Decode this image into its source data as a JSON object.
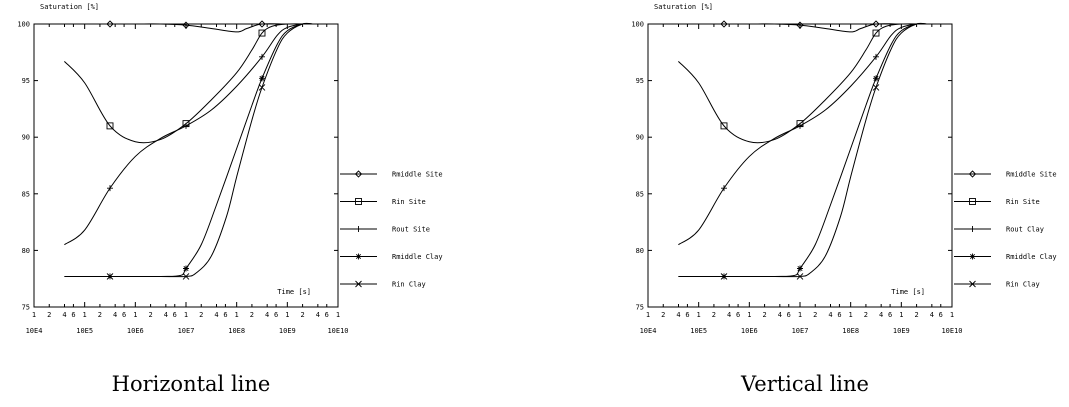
{
  "chart_data": [
    {
      "type": "line",
      "caption": "Horizontal line",
      "ylabel": "Saturation [%]",
      "xlabel": "Time [s]",
      "ylim": [
        75,
        100
      ],
      "yticks": [
        75,
        80,
        85,
        90,
        95,
        100
      ],
      "xlim_log10": [
        4,
        10
      ],
      "xtick_major_labels": [
        "10E4",
        "10E5",
        "10E6",
        "10E7",
        "10E8",
        "10E9",
        "10E10"
      ],
      "xtick_minor_labels": [
        "1",
        "2",
        "4",
        "6",
        "1",
        "2",
        "4",
        "6",
        "1",
        "2",
        "4",
        "6",
        "1",
        "2",
        "4",
        "6",
        "1",
        "2",
        "4",
        "6",
        "1",
        "2",
        "4",
        "6",
        "1"
      ],
      "legend_position": "right",
      "series": [
        {
          "name": "Rmiddle Site",
          "marker": "diamond",
          "points": [
            [
              4.5,
              100
            ],
            [
              5.0,
              100
            ],
            [
              5.5,
              100
            ],
            [
              6.0,
              100
            ],
            [
              6.5,
              100
            ],
            [
              7.0,
              99.9
            ],
            [
              7.5,
              99.6
            ],
            [
              8.0,
              99.3
            ],
            [
              8.2,
              99.6
            ],
            [
              8.5,
              100
            ],
            [
              9.0,
              100
            ],
            [
              9.5,
              100
            ]
          ],
          "marker_points": [
            [
              5.5,
              100
            ],
            [
              7.0,
              99.9
            ],
            [
              8.5,
              100
            ]
          ]
        },
        {
          "name": "Rin Site",
          "marker": "square",
          "points": [
            [
              4.6,
              96.7
            ],
            [
              5.0,
              94.8
            ],
            [
              5.5,
              91.0
            ],
            [
              6.0,
              89.6
            ],
            [
              6.5,
              89.8
            ],
            [
              7.0,
              91.2
            ],
            [
              7.5,
              93.3
            ],
            [
              8.0,
              95.7
            ],
            [
              8.3,
              97.7
            ],
            [
              8.5,
              99.2
            ],
            [
              8.7,
              99.8
            ],
            [
              9.0,
              100
            ],
            [
              9.5,
              100
            ]
          ],
          "marker_points": [
            [
              5.5,
              91.0
            ],
            [
              7.0,
              91.2
            ],
            [
              8.5,
              99.2
            ]
          ]
        },
        {
          "name": "Rout Site",
          "marker": "plus",
          "points": [
            [
              4.6,
              80.5
            ],
            [
              5.0,
              81.8
            ],
            [
              5.5,
              85.5
            ],
            [
              6.0,
              88.3
            ],
            [
              6.5,
              89.9
            ],
            [
              7.0,
              91.0
            ],
            [
              7.5,
              92.4
            ],
            [
              8.0,
              94.5
            ],
            [
              8.5,
              97.1
            ],
            [
              8.8,
              99.0
            ],
            [
              9.0,
              99.7
            ],
            [
              9.3,
              100
            ],
            [
              9.5,
              100
            ]
          ],
          "marker_points": [
            [
              5.5,
              85.5
            ],
            [
              7.0,
              91.0
            ],
            [
              8.5,
              97.1
            ]
          ]
        },
        {
          "name": "Rmiddle Clay",
          "marker": "asterisk",
          "points": [
            [
              4.6,
              77.7
            ],
            [
              5.5,
              77.7
            ],
            [
              6.5,
              77.7
            ],
            [
              6.9,
              77.8
            ],
            [
              7.0,
              78.4
            ],
            [
              7.3,
              80.5
            ],
            [
              7.6,
              84.0
            ],
            [
              8.0,
              89.0
            ],
            [
              8.3,
              92.8
            ],
            [
              8.5,
              95.2
            ],
            [
              8.8,
              98.2
            ],
            [
              9.0,
              99.4
            ],
            [
              9.3,
              100
            ],
            [
              9.5,
              100
            ]
          ],
          "marker_points": [
            [
              5.5,
              77.7
            ],
            [
              7.0,
              78.4
            ],
            [
              8.5,
              95.2
            ]
          ]
        },
        {
          "name": "Rin Clay",
          "marker": "x",
          "points": [
            [
              4.6,
              77.7
            ],
            [
              5.5,
              77.7
            ],
            [
              6.5,
              77.7
            ],
            [
              7.0,
              77.7
            ],
            [
              7.2,
              78.0
            ],
            [
              7.5,
              79.5
            ],
            [
              7.8,
              83.0
            ],
            [
              8.0,
              86.5
            ],
            [
              8.3,
              91.5
            ],
            [
              8.5,
              94.4
            ],
            [
              8.8,
              97.8
            ],
            [
              9.0,
              99.2
            ],
            [
              9.3,
              100
            ],
            [
              9.5,
              100
            ]
          ],
          "marker_points": [
            [
              5.5,
              77.7
            ],
            [
              7.0,
              77.7
            ],
            [
              8.5,
              94.4
            ]
          ]
        }
      ]
    },
    {
      "type": "line",
      "caption": "Vertical line",
      "ylabel": "Saturation [%]",
      "xlabel": "Time [s]",
      "ylim": [
        75,
        100
      ],
      "yticks": [
        75,
        80,
        85,
        90,
        95,
        100
      ],
      "xlim_log10": [
        4,
        10
      ],
      "xtick_major_labels": [
        "10E4",
        "10E5",
        "10E6",
        "10E7",
        "10E8",
        "10E9",
        "10E10"
      ],
      "xtick_minor_labels": [
        "1",
        "2",
        "4",
        "6",
        "1",
        "2",
        "4",
        "6",
        "1",
        "2",
        "4",
        "6",
        "1",
        "2",
        "4",
        "6",
        "1",
        "2",
        "4",
        "6",
        "1",
        "2",
        "4",
        "6",
        "1"
      ],
      "legend_position": "right",
      "series": [
        {
          "name": "Rmiddle Site",
          "marker": "diamond",
          "points": [
            [
              4.5,
              100
            ],
            [
              5.0,
              100
            ],
            [
              5.5,
              100
            ],
            [
              6.0,
              100
            ],
            [
              6.5,
              100
            ],
            [
              7.0,
              99.9
            ],
            [
              7.5,
              99.6
            ],
            [
              8.0,
              99.3
            ],
            [
              8.2,
              99.6
            ],
            [
              8.5,
              100
            ],
            [
              9.0,
              100
            ],
            [
              9.5,
              100
            ]
          ],
          "marker_points": [
            [
              5.5,
              100
            ],
            [
              7.0,
              99.9
            ],
            [
              8.5,
              100
            ]
          ]
        },
        {
          "name": "Rin Site",
          "marker": "square",
          "points": [
            [
              4.6,
              96.7
            ],
            [
              5.0,
              94.8
            ],
            [
              5.5,
              91.0
            ],
            [
              6.0,
              89.6
            ],
            [
              6.5,
              89.8
            ],
            [
              7.0,
              91.2
            ],
            [
              7.5,
              93.3
            ],
            [
              8.0,
              95.7
            ],
            [
              8.3,
              97.7
            ],
            [
              8.5,
              99.2
            ],
            [
              8.7,
              99.8
            ],
            [
              9.0,
              100
            ],
            [
              9.5,
              100
            ]
          ],
          "marker_points": [
            [
              5.5,
              91.0
            ],
            [
              7.0,
              91.2
            ],
            [
              8.5,
              99.2
            ]
          ]
        },
        {
          "name": "Rout Clay",
          "marker": "plus",
          "points": [
            [
              4.6,
              80.5
            ],
            [
              5.0,
              81.8
            ],
            [
              5.5,
              85.5
            ],
            [
              6.0,
              88.3
            ],
            [
              6.5,
              89.9
            ],
            [
              7.0,
              91.0
            ],
            [
              7.5,
              92.4
            ],
            [
              8.0,
              94.5
            ],
            [
              8.5,
              97.1
            ],
            [
              8.8,
              99.0
            ],
            [
              9.0,
              99.7
            ],
            [
              9.3,
              100
            ],
            [
              9.5,
              100
            ]
          ],
          "marker_points": [
            [
              5.5,
              85.5
            ],
            [
              7.0,
              91.0
            ],
            [
              8.5,
              97.1
            ]
          ]
        },
        {
          "name": "Rmiddle Clay",
          "marker": "asterisk",
          "points": [
            [
              4.6,
              77.7
            ],
            [
              5.5,
              77.7
            ],
            [
              6.5,
              77.7
            ],
            [
              6.9,
              77.8
            ],
            [
              7.0,
              78.4
            ],
            [
              7.3,
              80.5
            ],
            [
              7.6,
              84.0
            ],
            [
              8.0,
              89.0
            ],
            [
              8.3,
              92.8
            ],
            [
              8.5,
              95.2
            ],
            [
              8.8,
              98.2
            ],
            [
              9.0,
              99.4
            ],
            [
              9.3,
              100
            ],
            [
              9.5,
              100
            ]
          ],
          "marker_points": [
            [
              5.5,
              77.7
            ],
            [
              7.0,
              78.4
            ],
            [
              8.5,
              95.2
            ]
          ]
        },
        {
          "name": "Rin Clay",
          "marker": "x",
          "points": [
            [
              4.6,
              77.7
            ],
            [
              5.5,
              77.7
            ],
            [
              6.5,
              77.7
            ],
            [
              7.0,
              77.7
            ],
            [
              7.2,
              78.0
            ],
            [
              7.5,
              79.5
            ],
            [
              7.8,
              83.0
            ],
            [
              8.0,
              86.5
            ],
            [
              8.3,
              91.5
            ],
            [
              8.5,
              94.4
            ],
            [
              8.8,
              97.8
            ],
            [
              9.0,
              99.2
            ],
            [
              9.3,
              100
            ],
            [
              9.5,
              100
            ]
          ],
          "marker_points": [
            [
              5.5,
              77.7
            ],
            [
              7.0,
              77.7
            ],
            [
              8.5,
              94.4
            ]
          ]
        }
      ]
    }
  ]
}
